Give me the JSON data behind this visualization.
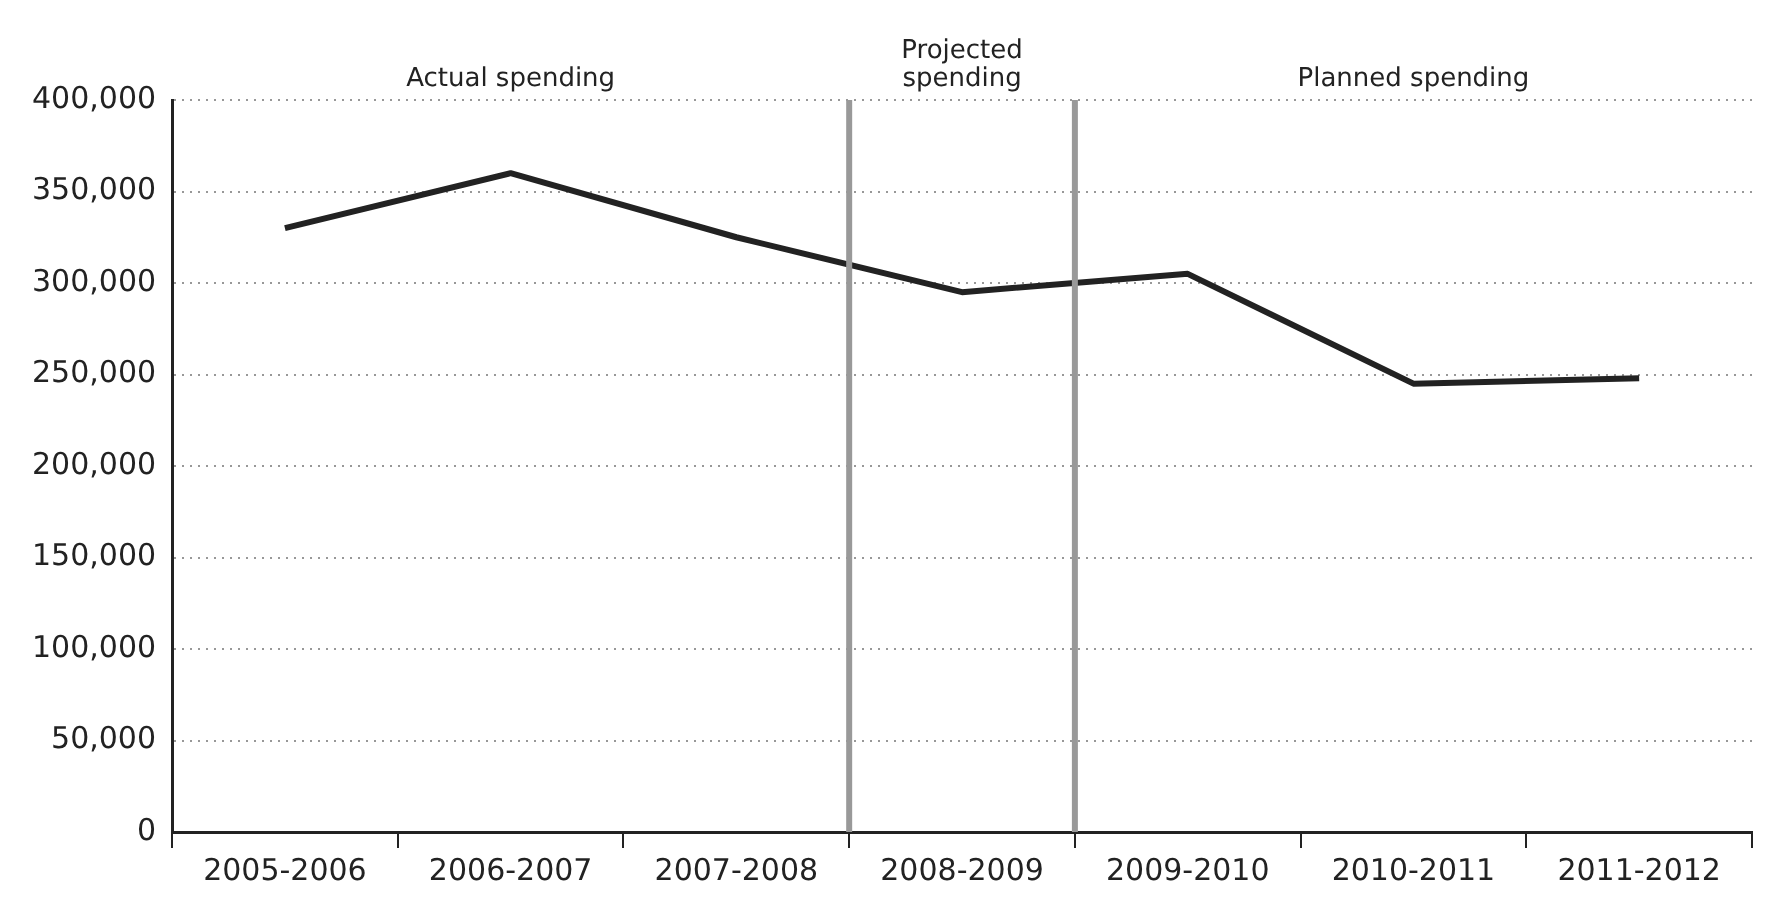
{
  "chart_data": {
    "type": "line",
    "categories": [
      "2005-2006",
      "2006-2007",
      "2007-2008",
      "2008-2009",
      "2009-2010",
      "2010-2011",
      "2011-2012"
    ],
    "series": [
      {
        "color": "#222222",
        "values": [
          330000,
          360000,
          325000,
          295000,
          305000,
          245000,
          248000
        ]
      }
    ],
    "ylim": [
      0,
      400000
    ],
    "yticks": [
      0,
      {
        "value": 50000,
        "label": "50,000"
      },
      {
        "value": 100000,
        "label": "100,000"
      },
      {
        "value": 150000,
        "label": "150,000"
      },
      {
        "value": 200000,
        "label": "200,000"
      },
      {
        "value": 250000,
        "label": "250,000"
      },
      {
        "value": 300000,
        "label": "300,000"
      },
      {
        "value": 350000,
        "label": "350,000"
      },
      {
        "value": 400000,
        "label": "400,000"
      }
    ],
    "grid": "y",
    "legend": false,
    "marker": "none",
    "annotations": [
      "Actual spending",
      "Projected spending",
      "Planned spending"
    ]
  }
}
